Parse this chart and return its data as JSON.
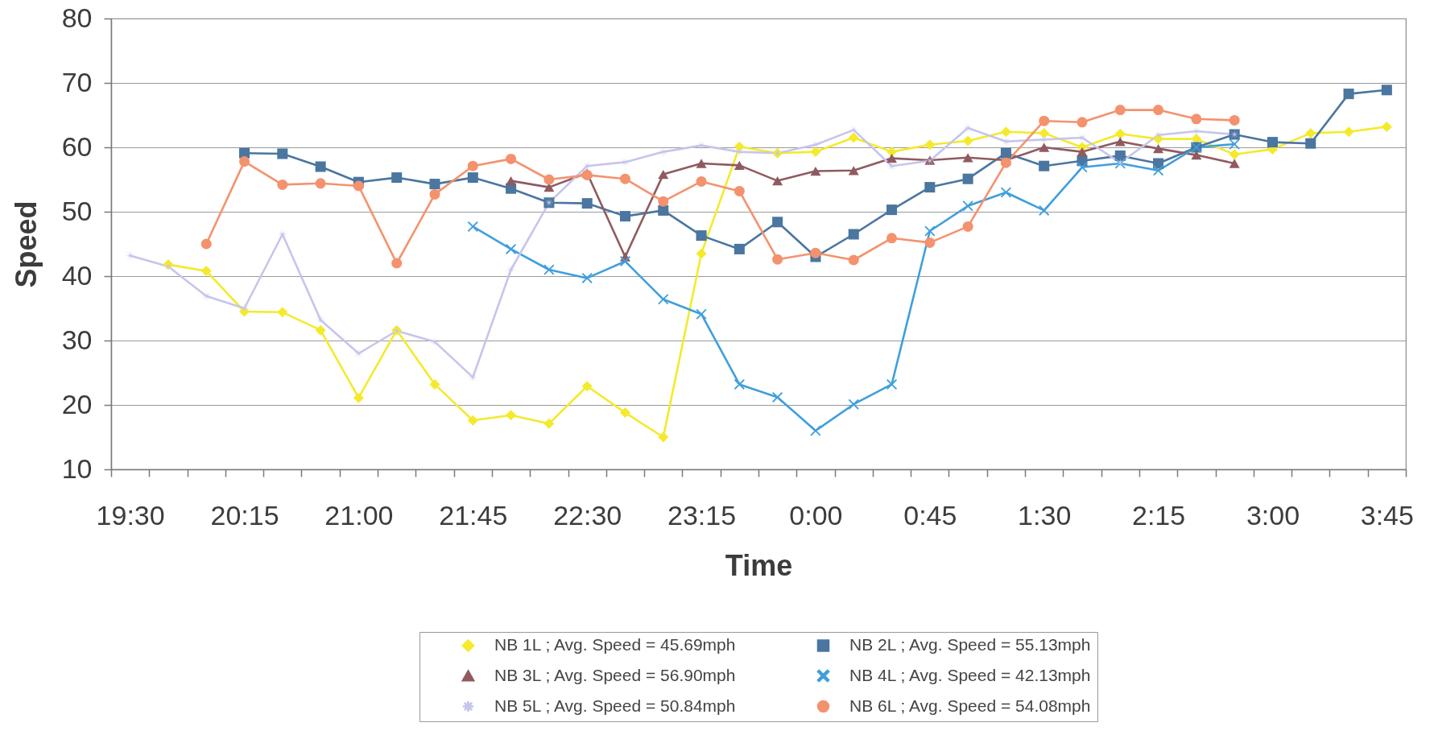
{
  "chart_data": {
    "type": "line",
    "xlabel": "Time",
    "ylabel": "Speed",
    "categories": [
      "19:30",
      null,
      null,
      "20:15",
      null,
      null,
      "21:00",
      null,
      null,
      "21:45",
      null,
      null,
      "22:30",
      null,
      null,
      "23:15",
      null,
      null,
      "0:00",
      null,
      null,
      "0:45",
      null,
      null,
      "1:30",
      null,
      null,
      "2:15",
      null,
      null,
      "3:00",
      null,
      null,
      "3:45"
    ],
    "ylim": [
      10,
      80
    ],
    "yticks": [
      10,
      20,
      30,
      40,
      50,
      60,
      70,
      80
    ],
    "grid": "y",
    "legend": "bottom",
    "series": [
      {
        "name": "NB 1L ; Avg. Speed = 45.69mph",
        "color": "#f4ea2c",
        "marker": "diamond",
        "values": [
          null,
          41.8,
          40.8,
          34.5,
          34.4,
          31.6,
          21.1,
          31.6,
          23.2,
          17.6,
          18.4,
          17.1,
          22.9,
          18.8,
          15.0,
          43.5,
          60.1,
          59.1,
          59.3,
          61.5,
          59.3,
          60.4,
          61.0,
          62.4,
          62.2,
          60.0,
          62.1,
          61.3,
          61.3,
          58.9,
          59.7,
          62.2,
          62.4,
          63.2
        ]
      },
      {
        "name": "NB 2L ; Avg. Speed = 55.13mph",
        "color": "#4a76a0",
        "marker": "square",
        "values": [
          null,
          null,
          null,
          59.1,
          59.0,
          57.0,
          54.6,
          55.3,
          54.3,
          55.3,
          53.6,
          51.4,
          51.3,
          49.3,
          50.2,
          46.3,
          44.2,
          48.4,
          43.0,
          46.5,
          50.3,
          53.8,
          55.1,
          59.1,
          57.1,
          57.9,
          58.7,
          57.5,
          60.0,
          62.0,
          60.8,
          60.6,
          68.3,
          68.9
        ]
      },
      {
        "name": "NB 3L ; Avg. Speed = 56.90mph",
        "color": "#8f5b60",
        "marker": "triangle",
        "values": [
          null,
          null,
          null,
          null,
          null,
          null,
          null,
          null,
          null,
          null,
          54.8,
          53.8,
          56.0,
          43.0,
          55.8,
          57.5,
          57.2,
          54.8,
          56.3,
          56.4,
          58.3,
          58.0,
          58.4,
          58.0,
          60.0,
          59.3,
          60.9,
          59.8,
          58.8,
          57.5,
          null,
          null,
          null,
          null
        ]
      },
      {
        "name": "NB 4L ; Avg. Speed = 42.13mph",
        "color": "#3f9fdc",
        "marker": "cross",
        "values": [
          null,
          null,
          null,
          null,
          null,
          null,
          null,
          null,
          null,
          47.7,
          44.2,
          41.0,
          39.7,
          42.3,
          36.4,
          34.1,
          23.2,
          21.2,
          16.0,
          20.1,
          23.2,
          47.0,
          50.9,
          53.0,
          50.2,
          56.9,
          57.5,
          56.4,
          60.0,
          60.5,
          null,
          null,
          null,
          null
        ]
      },
      {
        "name": "NB 5L ; Avg. Speed = 50.84mph",
        "color": "#c6c5ec",
        "marker": "star",
        "values": [
          43.2,
          41.5,
          36.9,
          35.0,
          46.5,
          33.2,
          28.0,
          31.5,
          29.8,
          24.3,
          41.0,
          51.4,
          57.1,
          57.7,
          59.3,
          60.3,
          59.3,
          59.1,
          60.4,
          62.7,
          57.1,
          57.9,
          63.0,
          60.9,
          61.2,
          61.5,
          57.6,
          61.9,
          62.5,
          62.0,
          null,
          null,
          null,
          null
        ]
      },
      {
        "name": "NB 6L ; Avg. Speed = 54.08mph",
        "color": "#f4926e",
        "marker": "circle",
        "values": [
          null,
          null,
          45.0,
          57.8,
          54.2,
          54.4,
          54.0,
          42.0,
          52.7,
          57.1,
          58.2,
          55.0,
          55.7,
          55.1,
          51.6,
          54.7,
          53.2,
          42.6,
          43.6,
          42.5,
          45.9,
          45.2,
          47.7,
          57.6,
          64.1,
          63.9,
          65.8,
          65.8,
          64.4,
          64.2,
          null,
          null,
          null,
          null
        ]
      }
    ]
  }
}
